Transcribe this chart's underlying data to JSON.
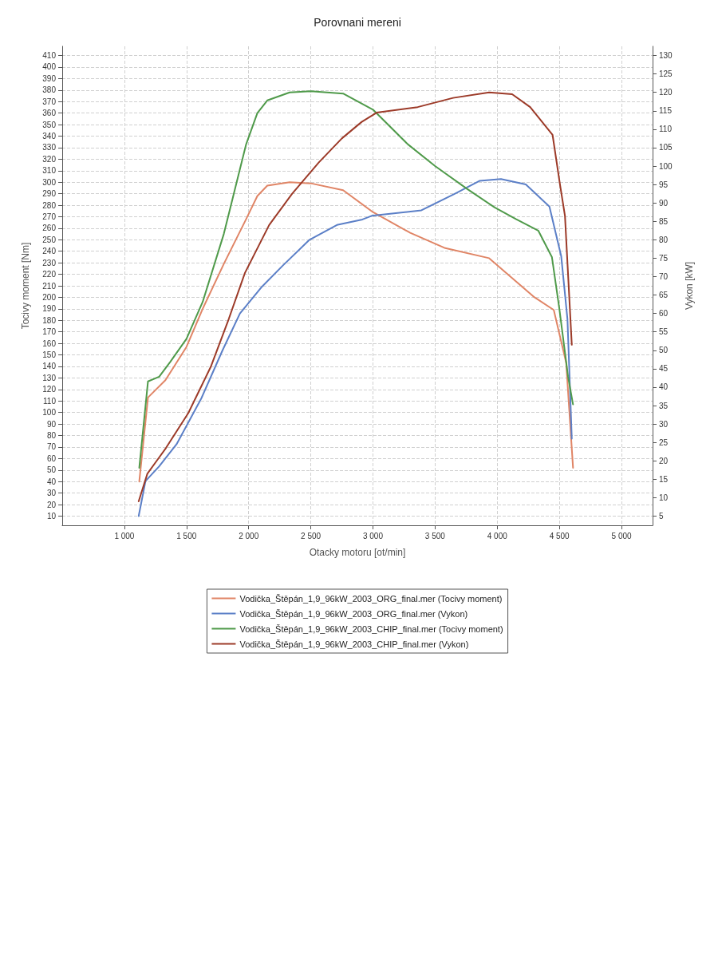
{
  "chart_data": {
    "type": "line",
    "title": "Porovnani mereni",
    "xlabel": "Otacky motoru [ot/min]",
    "ylabel": "Tocivy moment [Nm]",
    "y2label": "Vykon [kW]",
    "xlim": [
      500,
      5250
    ],
    "xticks": [
      {
        "value": 1000,
        "label": "1 000"
      },
      {
        "value": 1500,
        "label": "1 500"
      },
      {
        "value": 2000,
        "label": "2 000"
      },
      {
        "value": 2500,
        "label": "2 500"
      },
      {
        "value": 3000,
        "label": "3 000"
      },
      {
        "value": 3500,
        "label": "3 500"
      },
      {
        "value": 4000,
        "label": "4 000"
      },
      {
        "value": 4500,
        "label": "4 500"
      },
      {
        "value": 5000,
        "label": "5 000"
      }
    ],
    "ylim": [
      2,
      418
    ],
    "yticks": [
      10,
      20,
      30,
      40,
      50,
      60,
      70,
      80,
      90,
      100,
      110,
      120,
      130,
      140,
      150,
      160,
      170,
      180,
      190,
      200,
      210,
      220,
      230,
      240,
      250,
      260,
      270,
      280,
      290,
      300,
      310,
      320,
      330,
      340,
      350,
      360,
      370,
      380,
      390,
      400,
      410
    ],
    "y2lim": [
      2.5,
      132.5
    ],
    "y2ticks": [
      5,
      10,
      15,
      20,
      25,
      30,
      35,
      40,
      45,
      50,
      55,
      60,
      65,
      70,
      75,
      80,
      85,
      90,
      95,
      100,
      105,
      110,
      115,
      120,
      125,
      130
    ],
    "grid": true,
    "legend": "bottom",
    "marker": "none",
    "line_style": "solid",
    "series": [
      {
        "name": "Vodička_Štěpán_1,9_96kW_2003_ORG_final.mer (Tocivy moment)",
        "color": "#e08566",
        "x": [
          1120,
          1190,
          1330,
          1500,
          1630,
          1800,
          1980,
          2070,
          2150,
          2330,
          2500,
          2760,
          3000,
          3300,
          3575,
          3935,
          4300,
          4455,
          4555,
          4610
        ],
        "values": [
          40,
          113,
          128,
          157,
          190,
          229,
          268,
          288,
          297,
          300,
          299,
          293,
          274,
          256,
          243,
          234,
          200,
          189,
          143,
          52
        ]
      },
      {
        "name": "Vodička_Štěpán_1,9_96kW_2003_ORG_final.mer (Vykon)",
        "color": "#5b7fc7",
        "axis": "y2",
        "x": [
          1115,
          1170,
          1280,
          1420,
          1620,
          1790,
          1930,
          2100,
          2275,
          2490,
          2710,
          2915,
          2990,
          3390,
          3660,
          3860,
          4030,
          4230,
          4420,
          4515,
          4565,
          4600
        ],
        "values": [
          5,
          14.5,
          18.5,
          24.5,
          37,
          50,
          60,
          67,
          73,
          80,
          84,
          85.5,
          86.5,
          88,
          92.5,
          96,
          96.5,
          95,
          89,
          75.5,
          58.5,
          26
        ]
      },
      {
        "name": "Vodička_Štěpán_1,9_96kW_2003_CHIP_final.mer (Tocivy moment)",
        "color": "#4f9a4a",
        "x": [
          1120,
          1190,
          1280,
          1370,
          1500,
          1630,
          1800,
          1890,
          1980,
          2070,
          2150,
          2330,
          2500,
          2760,
          3000,
          3280,
          3500,
          3760,
          3980,
          4150,
          4330,
          4440,
          4500,
          4570,
          4610
        ],
        "values": [
          52,
          127,
          131,
          144,
          164,
          196,
          255,
          294,
          333,
          360,
          371,
          378,
          379,
          377,
          363,
          333,
          314,
          294,
          278,
          268,
          258,
          235,
          190,
          131,
          107
        ]
      },
      {
        "name": "Vodička_Štěpán_1,9_96kW_2003_CHIP_final.mer (Vykon)",
        "color": "#9c3a28",
        "axis": "y2",
        "x": [
          1115,
          1185,
          1260,
          1335,
          1515,
          1695,
          1840,
          1970,
          2165,
          2350,
          2565,
          2750,
          2910,
          3030,
          3360,
          3645,
          3935,
          4120,
          4265,
          4445,
          4505,
          4545,
          4600
        ],
        "values": [
          9,
          16.5,
          20,
          23.5,
          33,
          45.5,
          58.5,
          71,
          84,
          92.5,
          101,
          107.5,
          112,
          114.5,
          116,
          118.5,
          120,
          119.5,
          116,
          108.5,
          95,
          86.5,
          51.5
        ]
      }
    ]
  }
}
